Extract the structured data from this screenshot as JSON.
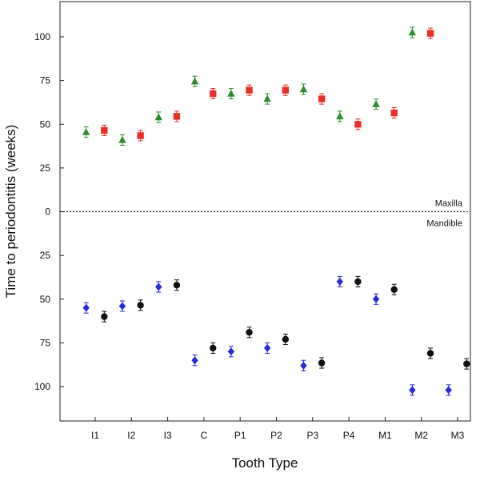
{
  "chart_data": {
    "type": "scatter",
    "title": "",
    "xlabel": "Tooth Type",
    "ylabel": "Time to periodontitis (weeks)",
    "categories": [
      "I1",
      "I2",
      "I3",
      "C",
      "P1",
      "P2",
      "P3",
      "P4",
      "M1",
      "M2",
      "M3"
    ],
    "y_ticks": [
      100,
      75,
      50,
      25,
      0,
      25,
      50,
      75,
      100
    ],
    "y_range": [
      -110,
      110
    ],
    "y_direction_note": "Maxilla plotted upward from 0, Mandible plotted downward from 0",
    "grid": false,
    "legend": "none",
    "regions": {
      "upper": "Maxilla",
      "lower": "Mandible"
    },
    "series": [
      {
        "jaw": "Maxilla",
        "color": "#2e8b2e",
        "marker": "triangle",
        "offset": -0.25,
        "values": [
          45.5,
          41,
          54,
          74.5,
          67.5,
          64.5,
          70,
          54.5,
          61.5,
          102.5,
          null
        ],
        "errors": [
          3,
          3,
          3,
          3,
          3,
          3,
          3,
          3,
          3,
          3,
          null
        ]
      },
      {
        "jaw": "Maxilla",
        "color": "#e8302a",
        "marker": "square",
        "offset": 0.25,
        "values": [
          46.5,
          43.5,
          54.5,
          67.5,
          69.5,
          69.5,
          64.5,
          50,
          56.5,
          102,
          null
        ],
        "errors": [
          3,
          3,
          3,
          3,
          3,
          3,
          3,
          3,
          3,
          3,
          null
        ]
      },
      {
        "jaw": "Mandible",
        "color": "#2a2ad6",
        "marker": "diamond",
        "offset": -0.25,
        "values": [
          55,
          54,
          43,
          85,
          80,
          78,
          88,
          40,
          50,
          102,
          102
        ],
        "errors": [
          3,
          3,
          3,
          3,
          3,
          3,
          3,
          3,
          3,
          3,
          3
        ]
      },
      {
        "jaw": "Mandible",
        "color": "#111111",
        "marker": "circle",
        "offset": 0.25,
        "values": [
          60,
          53.5,
          42,
          78,
          69,
          73,
          86.5,
          40,
          44.5,
          81,
          87
        ],
        "errors": [
          3,
          3,
          3,
          3,
          3,
          3,
          3,
          3,
          3,
          3,
          3
        ]
      }
    ]
  }
}
